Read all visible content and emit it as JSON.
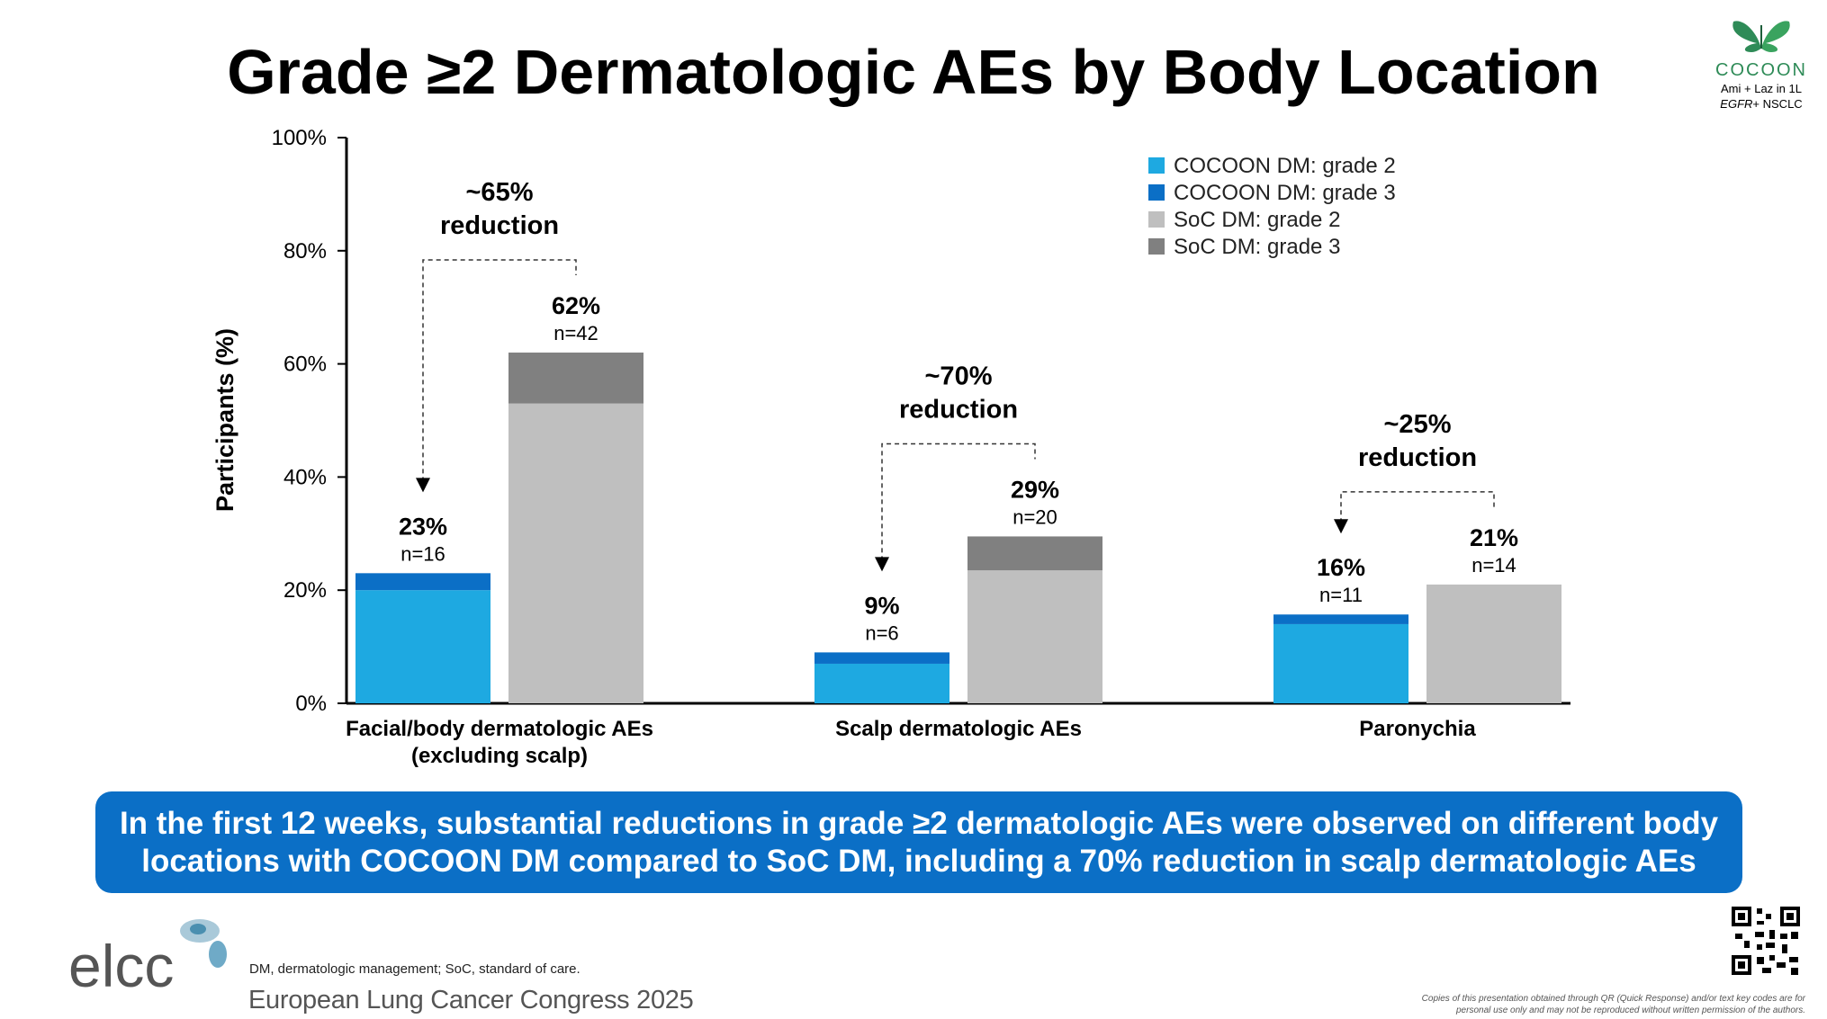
{
  "slide": {
    "title": "Grade ≥2 Dermatologic AEs by Body Location",
    "banner_line1": "In the first 12 weeks, substantial reductions in grade ≥2 dermatologic AEs were observed on different body",
    "banner_line2": "locations with COCOON DM compared to SoC DM, including a 70% reduction in scalp dermatologic AEs",
    "footnote": "DM, dermatologic management; SoC, standard of care.",
    "congress": "European Lung Cancer Congress 2025",
    "elcc_logo_text": "elcc",
    "copyright_line1": "Copies of this presentation obtained through QR (Quick Response) and/or text key codes are for",
    "copyright_line2": "personal use only and may not be reproduced without written permission of the authors.",
    "cocoon_logo": {
      "brand": "COCOON",
      "sub1": "Ami + Laz in 1L",
      "sub2_italic": "EGFR",
      "sub2_rest": "+ NSCLC"
    },
    "icons": [
      "butterfly-icon",
      "qr-code-icon",
      "elcc-logo-icon"
    ]
  },
  "chart_data": {
    "type": "bar",
    "ylabel": "Participants (%)",
    "ylim": [
      0,
      100
    ],
    "yticks": [
      "0%",
      "20%",
      "40%",
      "60%",
      "80%",
      "100%"
    ],
    "ytick_values": [
      0,
      20,
      40,
      60,
      80,
      100
    ],
    "groups": [
      {
        "category_lines": [
          "Facial/body dermatologic AEs",
          "(excluding scalp)"
        ],
        "cocoon": {
          "grade2": 20,
          "grade3": 3,
          "label": "23%",
          "n": "n=16"
        },
        "soc": {
          "grade2": 53,
          "grade3": 9,
          "label": "62%",
          "n": "n=42"
        },
        "reduction": [
          "~65%",
          "reduction"
        ]
      },
      {
        "category_lines": [
          "Scalp dermatologic AEs"
        ],
        "cocoon": {
          "grade2": 7,
          "grade3": 2,
          "label": "9%",
          "n": "n=6"
        },
        "soc": {
          "grade2": 23.5,
          "grade3": 6,
          "label": "29%",
          "n": "n=20"
        },
        "reduction": [
          "~70%",
          "reduction"
        ]
      },
      {
        "category_lines": [
          "Paronychia"
        ],
        "cocoon": {
          "grade2": 14,
          "grade3": 1.7,
          "label": "16%",
          "n": "n=11"
        },
        "soc": {
          "grade2": 21,
          "grade3": 0,
          "label": "21%",
          "n": "n=14"
        },
        "reduction": [
          "~25%",
          "reduction"
        ]
      }
    ],
    "legend": [
      {
        "name": "COCOON DM: grade 2",
        "color": "#1ea9e1"
      },
      {
        "name": "COCOON DM: grade 3",
        "color": "#0b6fc6"
      },
      {
        "name": "SoC DM: grade 2",
        "color": "#bfbfbf"
      },
      {
        "name": "SoC DM: grade 3",
        "color": "#808080"
      }
    ],
    "legend_position": "top-right",
    "grid": false
  }
}
